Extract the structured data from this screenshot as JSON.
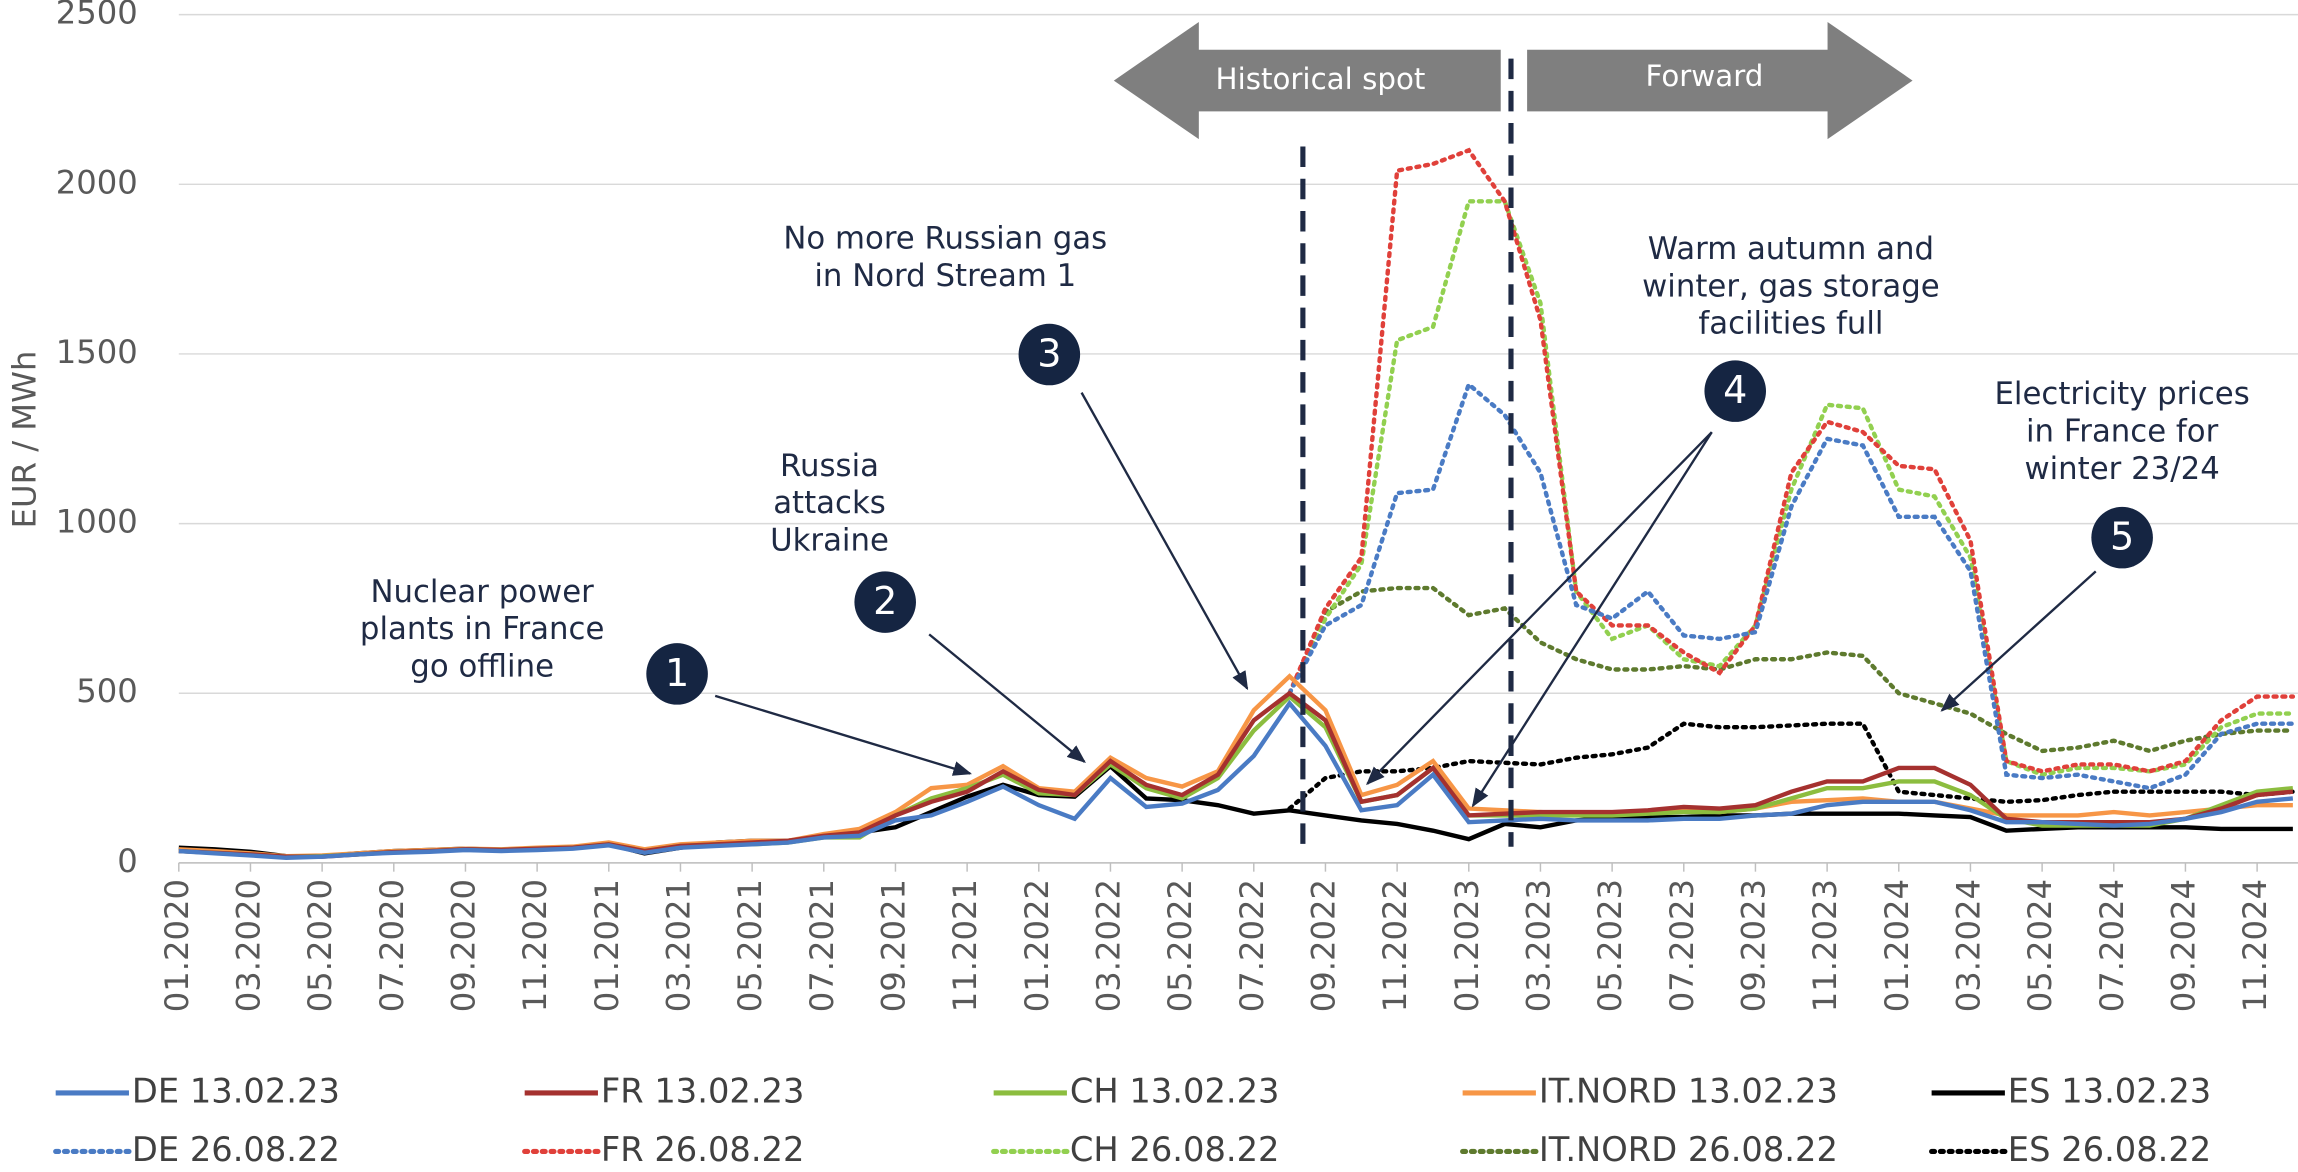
{
  "chart_data": {
    "type": "line",
    "y_label": "EUR / MWh",
    "categories": [
      "01.2020",
      null,
      "03.2020",
      null,
      "05.2020",
      null,
      "07.2020",
      null,
      "09.2020",
      null,
      "11.2020",
      null,
      "01.2021",
      null,
      "03.2021",
      null,
      "05.2021",
      null,
      "07.2021",
      null,
      "09.2021",
      null,
      "11.2021",
      null,
      "01.2022",
      null,
      "03.2022",
      null,
      "05.2022",
      null,
      "07.2022",
      null,
      "09.2022",
      null,
      "11.2022",
      null,
      "01.2023",
      null,
      "03.2023",
      null,
      "05.2023",
      null,
      "07.2023",
      null,
      "09.2023",
      null,
      "11.2023",
      null,
      "01.2024",
      null,
      "03.2024",
      null,
      "05.2024",
      null,
      "07.2024",
      null,
      "09.2024",
      null,
      "11.2024",
      null
    ],
    "ylim": [
      0,
      2500
    ],
    "yticks": [
      0,
      500,
      1000,
      1500,
      2000,
      2500
    ],
    "grid": true,
    "series": [
      {
        "name": "DE 13.02.23",
        "color": "#4a7bc4",
        "style": "solid",
        "values": [
          35,
          28,
          22,
          15,
          18,
          25,
          30,
          33,
          38,
          35,
          38,
          42,
          52,
          30,
          45,
          50,
          55,
          60,
          75,
          80,
          125,
          140,
          180,
          225,
          170,
          130,
          250,
          165,
          175,
          215,
          315,
          470,
          345,
          155,
          170,
          260,
          120,
          125,
          130,
          125,
          125,
          125,
          130,
          130,
          140,
          145,
          170,
          180,
          180,
          180,
          155,
          120,
          120,
          115,
          110,
          115,
          130,
          150,
          180,
          190
        ]
      },
      {
        "name": "FR 13.02.23",
        "color": "#a5312f",
        "style": "solid",
        "values": [
          35,
          30,
          25,
          18,
          18,
          25,
          32,
          35,
          40,
          38,
          42,
          45,
          55,
          35,
          50,
          55,
          60,
          65,
          80,
          90,
          140,
          180,
          210,
          270,
          215,
          200,
          300,
          230,
          200,
          260,
          420,
          500,
          420,
          180,
          200,
          280,
          140,
          145,
          150,
          150,
          150,
          155,
          165,
          160,
          170,
          210,
          240,
          240,
          280,
          280,
          230,
          130,
          120,
          120,
          120,
          120,
          130,
          160,
          200,
          210
        ]
      },
      {
        "name": "CH 13.02.23",
        "color": "#8cbd3f",
        "style": "solid",
        "values": [
          35,
          30,
          25,
          18,
          20,
          25,
          32,
          35,
          40,
          38,
          42,
          45,
          55,
          35,
          50,
          55,
          55,
          60,
          75,
          75,
          140,
          190,
          220,
          260,
          205,
          200,
          290,
          220,
          190,
          250,
          390,
          490,
          400,
          180,
          200,
          280,
          140,
          140,
          140,
          140,
          140,
          145,
          150,
          150,
          160,
          190,
          220,
          220,
          240,
          240,
          200,
          130,
          110,
          110,
          110,
          110,
          130,
          170,
          210,
          220
        ]
      },
      {
        "name": "IT.NORD 13.02.23",
        "color": "#f79646",
        "style": "solid",
        "values": [
          40,
          35,
          28,
          20,
          22,
          28,
          35,
          38,
          42,
          40,
          45,
          48,
          60,
          40,
          55,
          60,
          65,
          65,
          85,
          100,
          150,
          220,
          230,
          285,
          220,
          210,
          310,
          250,
          225,
          270,
          450,
          550,
          450,
          200,
          230,
          300,
          160,
          155,
          150,
          145,
          145,
          150,
          155,
          150,
          160,
          180,
          185,
          190,
          180,
          180,
          160,
          140,
          140,
          140,
          150,
          140,
          150,
          160,
          170,
          170
        ]
      },
      {
        "name": "ES 13.02.23",
        "color": "#000000",
        "style": "solid",
        "values": [
          45,
          40,
          33,
          20,
          20,
          28,
          35,
          38,
          42,
          38,
          40,
          45,
          55,
          28,
          45,
          60,
          65,
          65,
          80,
          90,
          105,
          150,
          195,
          230,
          200,
          195,
          285,
          190,
          185,
          170,
          145,
          155,
          140,
          125,
          115,
          95,
          70,
          115,
          105,
          125,
          135,
          135,
          135,
          140,
          140,
          145,
          145,
          145,
          145,
          140,
          135,
          95,
          100,
          105,
          105,
          105,
          105,
          100,
          100,
          100
        ]
      },
      {
        "name": "DE 26.08.22",
        "color": "#4a7bc4",
        "style": "dotted",
        "values": [
          null,
          null,
          null,
          null,
          null,
          null,
          null,
          null,
          null,
          null,
          null,
          null,
          null,
          null,
          null,
          null,
          null,
          null,
          null,
          null,
          null,
          null,
          null,
          null,
          null,
          null,
          null,
          null,
          null,
          null,
          null,
          500,
          700,
          760,
          1090,
          1100,
          1410,
          1320,
          1150,
          760,
          720,
          800,
          670,
          660,
          680,
          1050,
          1250,
          1230,
          1020,
          1020,
          860,
          260,
          250,
          260,
          240,
          220,
          260,
          380,
          410,
          410
        ]
      },
      {
        "name": "FR 26.08.22",
        "color": "#e0403a",
        "style": "dotted",
        "values": [
          null,
          null,
          null,
          null,
          null,
          null,
          null,
          null,
          null,
          null,
          null,
          null,
          null,
          null,
          null,
          null,
          null,
          null,
          null,
          null,
          null,
          null,
          null,
          null,
          null,
          null,
          null,
          null,
          null,
          null,
          null,
          500,
          750,
          900,
          2040,
          2060,
          2100,
          1950,
          1600,
          800,
          700,
          700,
          620,
          560,
          700,
          1150,
          1300,
          1270,
          1170,
          1160,
          950,
          300,
          270,
          290,
          290,
          270,
          300,
          420,
          490,
          490
        ]
      },
      {
        "name": "CH 26.08.22",
        "color": "#92d050",
        "style": "dotted",
        "values": [
          null,
          null,
          null,
          null,
          null,
          null,
          null,
          null,
          null,
          null,
          null,
          null,
          null,
          null,
          null,
          null,
          null,
          null,
          null,
          null,
          null,
          null,
          null,
          null,
          null,
          null,
          null,
          null,
          null,
          null,
          null,
          500,
          720,
          880,
          1540,
          1580,
          1950,
          1950,
          1650,
          800,
          660,
          700,
          600,
          580,
          700,
          1100,
          1350,
          1340,
          1100,
          1080,
          900,
          300,
          260,
          280,
          280,
          270,
          290,
          400,
          440,
          440
        ]
      },
      {
        "name": "IT.NORD 26.08.22",
        "color": "#5e7a2e",
        "style": "dotted",
        "values": [
          null,
          null,
          null,
          null,
          null,
          null,
          null,
          null,
          null,
          null,
          null,
          null,
          null,
          null,
          null,
          null,
          null,
          null,
          null,
          null,
          null,
          null,
          null,
          null,
          null,
          null,
          null,
          null,
          null,
          null,
          null,
          500,
          740,
          800,
          810,
          810,
          730,
          750,
          650,
          600,
          570,
          570,
          580,
          570,
          600,
          600,
          620,
          610,
          500,
          470,
          440,
          380,
          330,
          340,
          360,
          330,
          360,
          380,
          390,
          390
        ]
      },
      {
        "name": "ES 26.08.22",
        "color": "#000000",
        "style": "dotted",
        "values": [
          null,
          null,
          null,
          null,
          null,
          null,
          null,
          null,
          null,
          null,
          null,
          null,
          null,
          null,
          null,
          null,
          null,
          null,
          null,
          null,
          null,
          null,
          null,
          null,
          null,
          null,
          null,
          null,
          null,
          null,
          null,
          160,
          250,
          270,
          270,
          280,
          300,
          295,
          290,
          310,
          320,
          340,
          410,
          400,
          400,
          405,
          410,
          410,
          210,
          200,
          190,
          180,
          185,
          200,
          210,
          210,
          210,
          210,
          200,
          210
        ]
      }
    ],
    "period_labels": [
      "Historical spot",
      "Forward"
    ],
    "annotations": [
      {
        "number": "1",
        "text": [
          "Nuclear power",
          "plants in France",
          "go offline"
        ]
      },
      {
        "number": "2",
        "text": [
          "Russia",
          "attacks",
          "Ukraine"
        ]
      },
      {
        "number": "3",
        "text": [
          "No more Russian gas",
          "in Nord Stream 1"
        ]
      },
      {
        "number": "4",
        "text": [
          "Warm autumn and",
          "winter, gas storage",
          "facilities full"
        ]
      },
      {
        "number": "5",
        "text": [
          "Electricity prices",
          "in France for",
          "winter 23/24"
        ]
      }
    ]
  }
}
